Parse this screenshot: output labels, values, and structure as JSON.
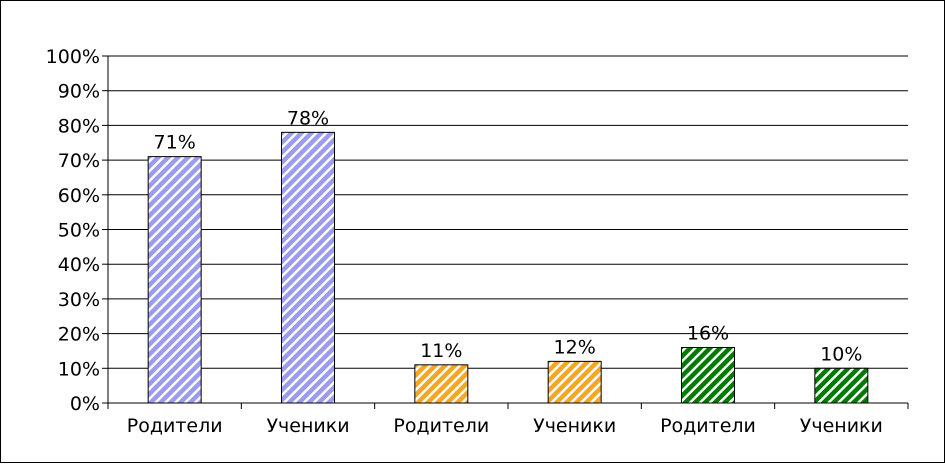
{
  "chart_data": {
    "type": "bar",
    "categories": [
      "Родители",
      "Ученики",
      "Родители",
      "Ученики",
      "Родители",
      "Ученики"
    ],
    "values": [
      71,
      78,
      11,
      12,
      16,
      10
    ],
    "value_labels": [
      "71%",
      "78%",
      "11%",
      "12%",
      "16%",
      "10%"
    ],
    "bar_colors": [
      "#9b9bef",
      "#9b9bef",
      "#f5a623",
      "#f5a623",
      "#007a00",
      "#007a00"
    ],
    "bar_fill_pattern": "diagonal-stripes",
    "title": "",
    "xlabel": "",
    "ylabel": "",
    "ylim": [
      0,
      100
    ],
    "y_ticks": [
      "0%",
      "10%",
      "20%",
      "30%",
      "40%",
      "50%",
      "60%",
      "70%",
      "80%",
      "90%",
      "100%"
    ],
    "grid": true,
    "legend": "none"
  }
}
